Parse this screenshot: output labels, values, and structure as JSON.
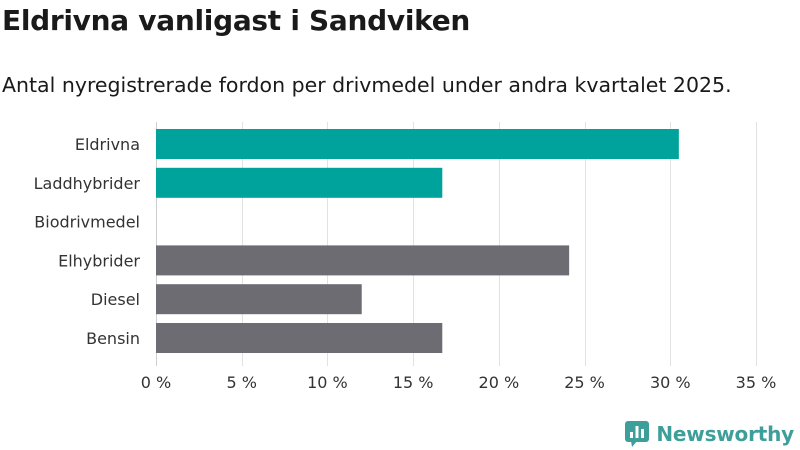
{
  "brand": {
    "name": "Newsworthy",
    "color": "#3e9e9a"
  },
  "chart_data": {
    "type": "bar",
    "orientation": "horizontal",
    "title": "Eldrivna vanligast i Sandviken",
    "subtitle": "Antal nyregistrerade fordon per drivmedel under andra kvartalet 2025.",
    "categories": [
      "Eldrivna",
      "Laddhybrider",
      "Biodrivmedel",
      "Elhybrider",
      "Diesel",
      "Bensin"
    ],
    "values": [
      30.5,
      16.7,
      0,
      24.1,
      12.0,
      16.7
    ],
    "bar_colors": [
      "#00a39b",
      "#00a39b",
      "#00a39b",
      "#6d6c72",
      "#6d6c72",
      "#6d6c72"
    ],
    "xlim": [
      0,
      35
    ],
    "x_ticks": [
      0,
      5,
      10,
      15,
      20,
      25,
      30,
      35
    ],
    "x_tick_labels": [
      "0 %",
      "5 %",
      "10 %",
      "15 %",
      "20 %",
      "25 %",
      "30 %",
      "35 %"
    ],
    "xlabel": "",
    "ylabel": "",
    "grid": "vertical",
    "legend": "none"
  }
}
